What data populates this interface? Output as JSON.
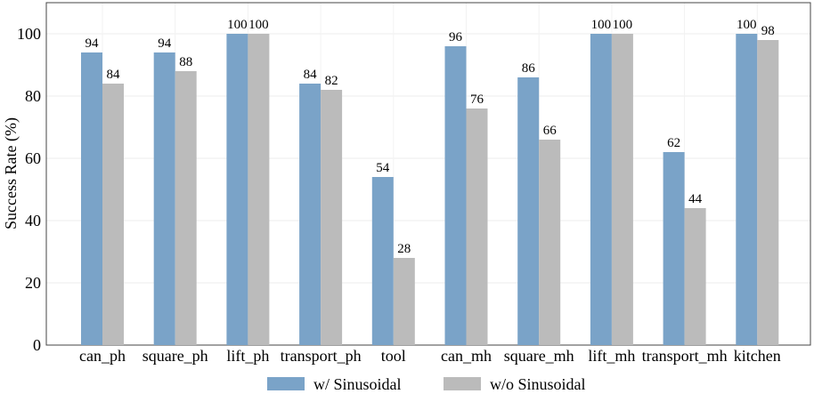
{
  "chart_data": {
    "type": "bar",
    "title": "",
    "xlabel": "",
    "ylabel": "Success Rate (%)",
    "ylim": [
      0,
      110
    ],
    "yticks": [
      0,
      20,
      40,
      60,
      80,
      100
    ],
    "grid": true,
    "legend_position": "bottom-center",
    "categories": [
      "can_ph",
      "square_ph",
      "lift_ph",
      "transport_ph",
      "tool",
      "can_mh",
      "square_mh",
      "lift_mh",
      "transport_mh",
      "kitchen"
    ],
    "series": [
      {
        "name": "w/ Sinusoidal",
        "color": "#7aa3c8",
        "values": [
          94,
          94,
          100,
          84,
          54,
          96,
          86,
          100,
          62,
          100
        ]
      },
      {
        "name": "w/o Sinusoidal",
        "color": "#bbbbbb",
        "values": [
          84,
          88,
          100,
          82,
          28,
          76,
          66,
          100,
          44,
          98
        ]
      }
    ]
  }
}
